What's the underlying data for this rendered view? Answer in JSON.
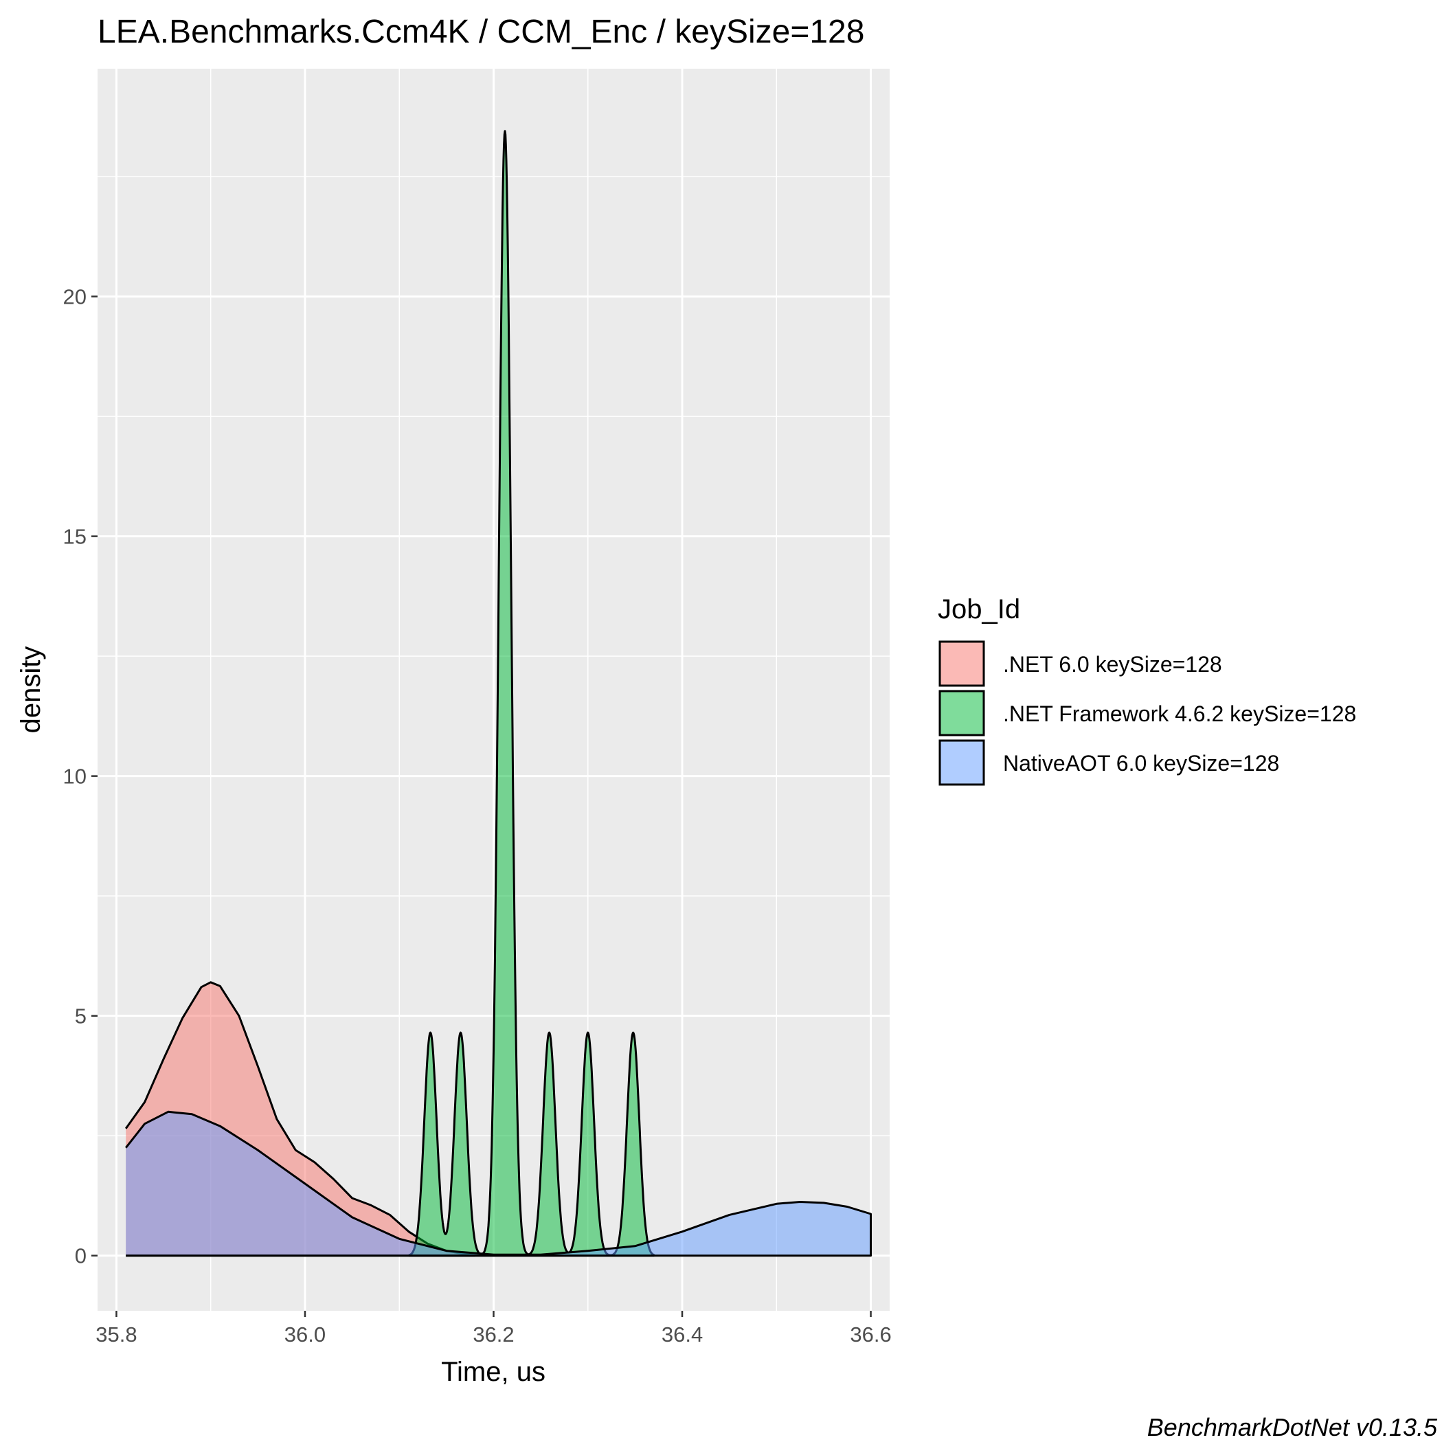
{
  "chart_data": {
    "type": "area",
    "title": "LEA.Benchmarks.Ccm4K / CCM_Enc / keySize=128",
    "xlabel": "Time, us",
    "ylabel": "density",
    "xlim": [
      35.78,
      36.62
    ],
    "ylim": [
      -1.15,
      24.75
    ],
    "x_ticks": [
      "35.8",
      "36.0",
      "36.2",
      "36.4",
      "36.6"
    ],
    "y_ticks": [
      "0",
      "5",
      "10",
      "15",
      "20"
    ],
    "grid": true,
    "legend_title": "Job_Id",
    "legend_position": "right",
    "caption": "BenchmarkDotNet v0.13.5",
    "series": [
      {
        "name": ".NET 6.0 keySize=128",
        "color": "#F8766D",
        "points": [
          [
            35.81,
            2.65
          ],
          [
            35.83,
            3.2
          ],
          [
            35.85,
            4.1
          ],
          [
            35.87,
            4.95
          ],
          [
            35.89,
            5.6
          ],
          [
            35.9,
            5.7
          ],
          [
            35.91,
            5.62
          ],
          [
            35.93,
            5.0
          ],
          [
            35.95,
            3.95
          ],
          [
            35.97,
            2.85
          ],
          [
            35.99,
            2.2
          ],
          [
            36.01,
            1.95
          ],
          [
            36.03,
            1.6
          ],
          [
            36.05,
            1.2
          ],
          [
            36.07,
            1.05
          ],
          [
            36.09,
            0.85
          ],
          [
            36.11,
            0.5
          ],
          [
            36.13,
            0.25
          ],
          [
            36.15,
            0.1
          ],
          [
            36.17,
            0.03
          ],
          [
            36.18,
            0.0
          ]
        ]
      },
      {
        "name": ".NET Framework 4.6.2 keySize=128",
        "color": "#00BA38",
        "peaks": [
          {
            "x": 36.133,
            "height": 4.65,
            "sd": 0.0065
          },
          {
            "x": 36.165,
            "height": 4.65,
            "sd": 0.0065
          },
          {
            "x": 36.212,
            "height": 23.45,
            "sd": 0.0065
          },
          {
            "x": 36.259,
            "height": 4.65,
            "sd": 0.0065
          },
          {
            "x": 36.3,
            "height": 4.65,
            "sd": 0.0065
          },
          {
            "x": 36.348,
            "height": 4.65,
            "sd": 0.0065
          }
        ],
        "x_range": [
          36.11,
          36.37
        ]
      },
      {
        "name": "NativeAOT 6.0 keySize=128",
        "color": "#619CFF",
        "points": [
          [
            35.81,
            2.25
          ],
          [
            35.83,
            2.75
          ],
          [
            35.855,
            3.0
          ],
          [
            35.88,
            2.95
          ],
          [
            35.91,
            2.7
          ],
          [
            35.95,
            2.2
          ],
          [
            36.0,
            1.5
          ],
          [
            36.05,
            0.8
          ],
          [
            36.1,
            0.35
          ],
          [
            36.15,
            0.1
          ],
          [
            36.2,
            0.02
          ],
          [
            36.25,
            0.02
          ],
          [
            36.3,
            0.1
          ],
          [
            36.35,
            0.2
          ],
          [
            36.4,
            0.5
          ],
          [
            36.45,
            0.85
          ],
          [
            36.5,
            1.08
          ],
          [
            36.525,
            1.12
          ],
          [
            36.55,
            1.1
          ],
          [
            36.575,
            1.02
          ],
          [
            36.6,
            0.87
          ]
        ]
      }
    ]
  }
}
